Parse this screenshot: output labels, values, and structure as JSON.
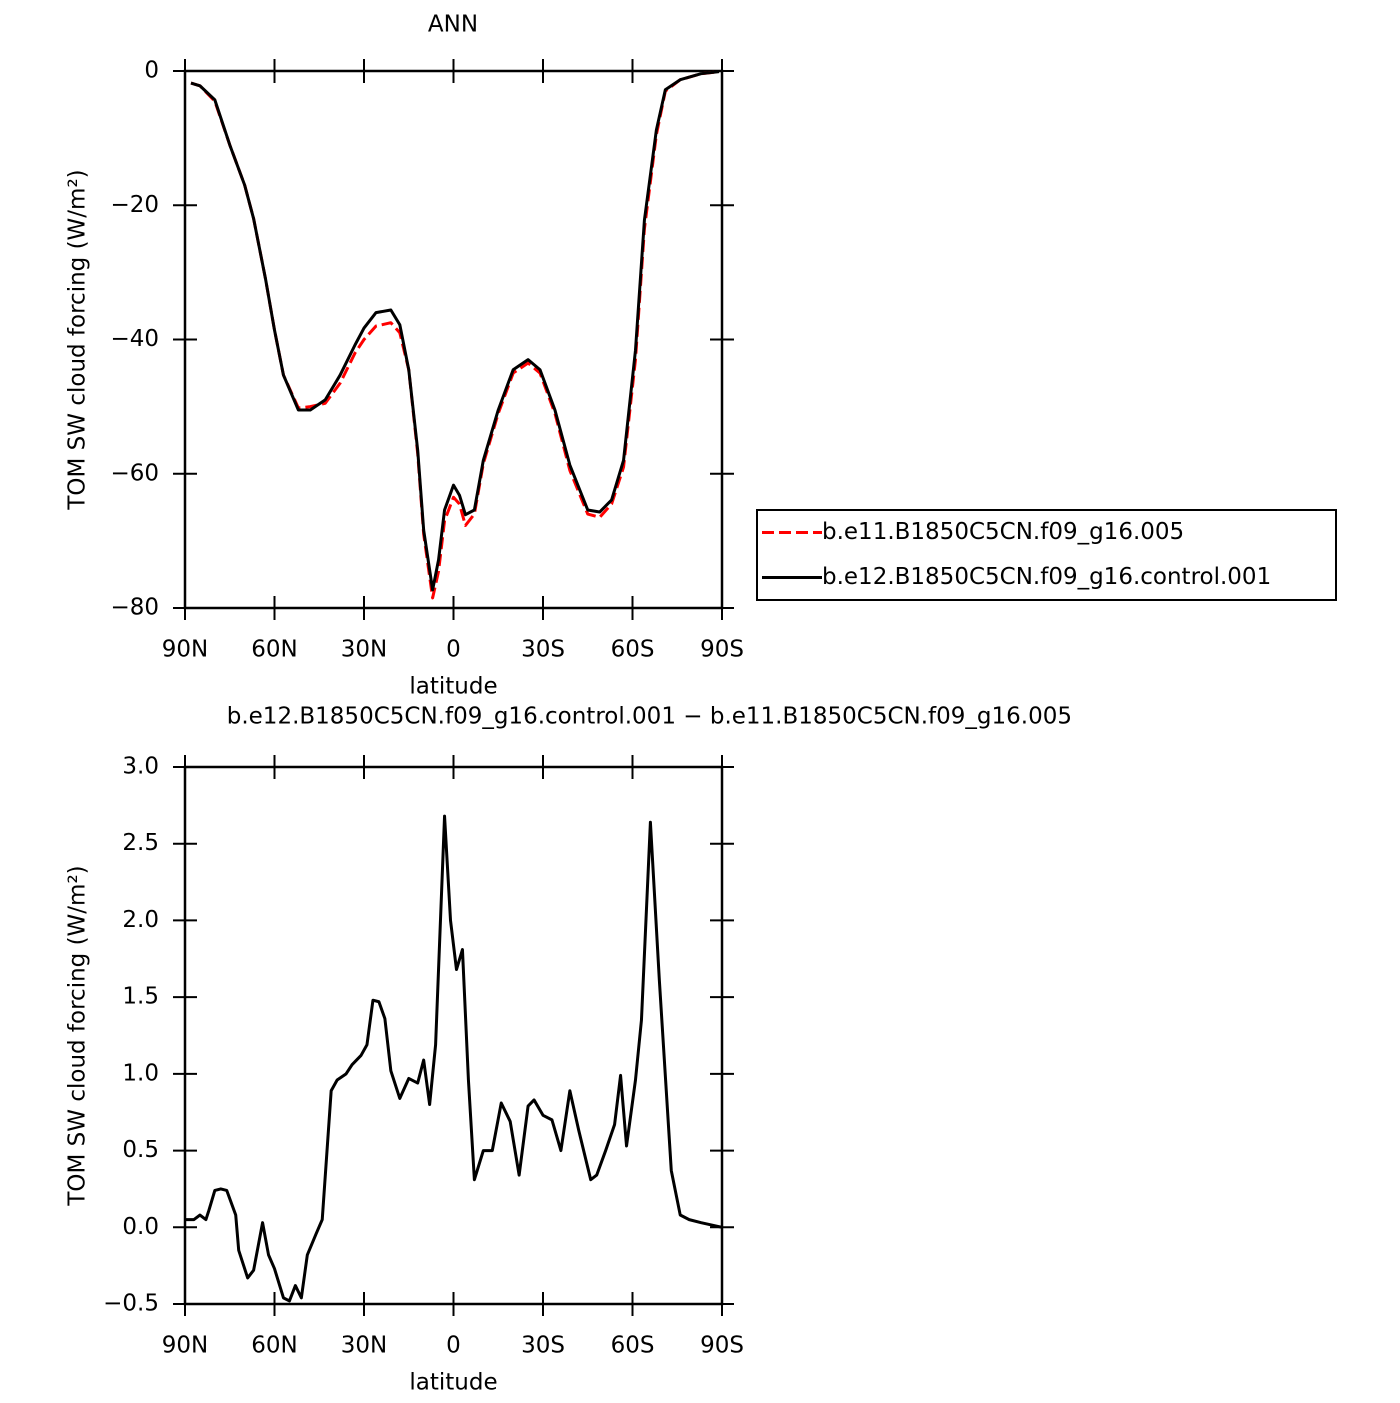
{
  "chart_data": [
    {
      "type": "line",
      "title": "ANN",
      "x_label": "latitude",
      "y_label": "TOM SW cloud forcing (W/m²)",
      "x": [
        88,
        85,
        80,
        75,
        70,
        67,
        63,
        60,
        57,
        52,
        48,
        43,
        38,
        33,
        30,
        26,
        21,
        18,
        15,
        12,
        10,
        7,
        5,
        3,
        0,
        -2,
        -4,
        -7,
        -10,
        -15,
        -20,
        -25,
        -29,
        -34,
        -39,
        -45,
        -49,
        -53,
        -57,
        -61,
        -64,
        -68,
        -71,
        -76,
        -83,
        -89
      ],
      "series": [
        {
          "name": "b.e11.B1850C5CN.f09_g16.005",
          "color": "#ff0000",
          "dash": true,
          "values": [
            -1.8,
            -2.2,
            -4.5,
            -11,
            -17,
            -22,
            -31,
            -38.6,
            -45.3,
            -50.2,
            -50,
            -49.5,
            -46.5,
            -42,
            -40,
            -38,
            -37.5,
            -39,
            -44.5,
            -57,
            -69,
            -78.5,
            -74.5,
            -67,
            -63.5,
            -64.5,
            -67.7,
            -66,
            -58.5,
            -51,
            -45,
            -43.5,
            -45,
            -51,
            -59.5,
            -66,
            -66.5,
            -64.5,
            -59,
            -43,
            -23.5,
            -9.5,
            -3,
            -1.3,
            -0.4,
            -0.1
          ]
        },
        {
          "name": "b.e12.B1850C5CN.f09_g16.control.001",
          "color": "#000000",
          "dash": false,
          "values": [
            -1.8,
            -2.2,
            -4.3,
            -11,
            -17,
            -22,
            -31,
            -38.6,
            -45.3,
            -50.5,
            -50.5,
            -49,
            -45.3,
            -40.8,
            -38.3,
            -36,
            -35.6,
            -37.8,
            -44.5,
            -56.5,
            -68.4,
            -77.3,
            -72.8,
            -65.4,
            -61.7,
            -63.2,
            -66.1,
            -65.4,
            -58,
            -50.5,
            -44.5,
            -43,
            -44.5,
            -50.5,
            -58.7,
            -65.4,
            -65.7,
            -63.9,
            -58,
            -41.6,
            -22.2,
            -8.8,
            -2.8,
            -1.3,
            -0.4,
            -0.1
          ]
        }
      ],
      "xlim": [
        90,
        -90
      ],
      "xticks": [
        {
          "value": 90,
          "label": "90N"
        },
        {
          "value": 60,
          "label": "60N"
        },
        {
          "value": 30,
          "label": "30N"
        },
        0,
        {
          "value": -30,
          "label": "30S"
        },
        {
          "value": -60,
          "label": "60S"
        },
        {
          "value": -90,
          "label": "90S"
        }
      ],
      "ylim": [
        -80,
        0
      ],
      "yticks": [
        0,
        {
          "value": -20,
          "label": "−20"
        },
        {
          "value": -40,
          "label": "−40"
        },
        {
          "value": -60,
          "label": "−60"
        },
        {
          "value": -80,
          "label": "−80"
        }
      ],
      "legend": "right"
    },
    {
      "type": "line",
      "title": "b.e12.B1850C5CN.f09_g16.control.001 − b.e11.B1850C5CN.f09_g16.005",
      "x_label": "latitude",
      "y_label": "TOM SW cloud forcing (W/m²)",
      "x": [
        90,
        87,
        85,
        83,
        82,
        80,
        78,
        76,
        73,
        72,
        69,
        67,
        64,
        62,
        60,
        57,
        55,
        53,
        51,
        49,
        46,
        44,
        41,
        39,
        36,
        34,
        31,
        29,
        27,
        25,
        23,
        21,
        18,
        15,
        12,
        10,
        8,
        6,
        3,
        1,
        -1,
        -3,
        -5,
        -7,
        -10,
        -13,
        -16,
        -19,
        -22,
        -25,
        -27,
        -30,
        -33,
        -36,
        -39,
        -42,
        -46,
        -48,
        -51,
        -54,
        -56,
        -58,
        -61,
        -63,
        -66,
        -69,
        -73,
        -76,
        -79,
        -83,
        -90
      ],
      "series": [
        {
          "name": null,
          "color": "#000000",
          "dash": false,
          "values": [
            0.05,
            0.05,
            0.08,
            0.05,
            0.11,
            0.24,
            0.25,
            0.24,
            0.08,
            -0.15,
            -0.33,
            -0.28,
            0.03,
            -0.18,
            -0.27,
            -0.46,
            -0.48,
            -0.38,
            -0.46,
            -0.18,
            -0.04,
            0.05,
            0.89,
            0.96,
            1.0,
            1.06,
            1.12,
            1.19,
            1.48,
            1.47,
            1.36,
            1.02,
            0.84,
            0.97,
            0.94,
            1.09,
            0.8,
            1.19,
            2.68,
            2.0,
            1.68,
            1.81,
            0.96,
            0.31,
            0.5,
            0.5,
            0.81,
            0.69,
            0.34,
            0.79,
            0.83,
            0.73,
            0.7,
            0.5,
            0.89,
            0.63,
            0.31,
            0.34,
            0.5,
            0.67,
            0.99,
            0.53,
            0.96,
            1.35,
            2.64,
            1.61,
            0.37,
            0.08,
            0.05,
            0.03,
            0
          ]
        }
      ],
      "xlim": [
        90,
        -90
      ],
      "xticks": [
        {
          "value": 90,
          "label": "90N"
        },
        {
          "value": 60,
          "label": "60N"
        },
        {
          "value": 30,
          "label": "30N"
        },
        0,
        {
          "value": -30,
          "label": "30S"
        },
        {
          "value": -60,
          "label": "60S"
        },
        {
          "value": -90,
          "label": "90S"
        }
      ],
      "ylim": [
        -0.5,
        3
      ],
      "yticks": [
        {
          "value": 3,
          "label": "3.0"
        },
        2.5,
        {
          "value": 2,
          "label": "2.0"
        },
        1.5,
        {
          "value": 1,
          "label": "1.0"
        },
        0.5,
        {
          "value": 0,
          "label": "0.0"
        },
        {
          "value": -0.5,
          "label": "−0.5"
        }
      ]
    }
  ]
}
